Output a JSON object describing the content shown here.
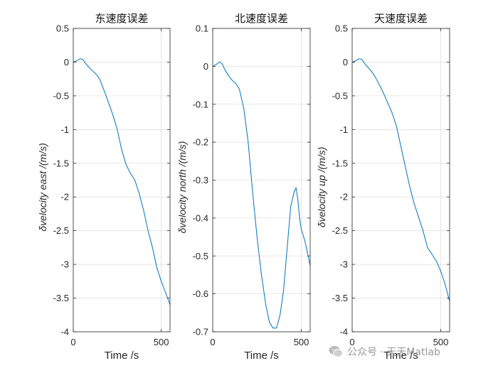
{
  "colors": {
    "line": "#0072BD",
    "axis": "#262626",
    "grid": "#dfdfdf"
  },
  "watermark": {
    "text": "公众号 · 天天Matlab",
    "icon": "wechat-icon"
  },
  "chart_data": [
    {
      "type": "line",
      "title": "东速度误差",
      "xlabel": "Time /s",
      "ylabel": "δvelocity east /(m/s)",
      "xlim": [
        0,
        550
      ],
      "ylim": [
        -4,
        0.5
      ],
      "xticks": [
        0,
        500
      ],
      "yticks": [
        0.5,
        0,
        -0.5,
        -1,
        -1.5,
        -2,
        -2.5,
        -3,
        -3.5,
        -4
      ],
      "ytick_labels": [
        "0.5",
        "0",
        "-0.5",
        "-1",
        "-1.5",
        "-2",
        "-2.5",
        "-3",
        "-3.5",
        "-4"
      ],
      "grid": true,
      "x": [
        0,
        20,
        40,
        55,
        70,
        90,
        110,
        130,
        150,
        175,
        200,
        225,
        250,
        275,
        300,
        325,
        350,
        375,
        400,
        425,
        450,
        475,
        500,
        525,
        550
      ],
      "y": [
        0.0,
        0.02,
        0.05,
        0.04,
        -0.02,
        -0.08,
        -0.13,
        -0.18,
        -0.25,
        -0.42,
        -0.6,
        -0.78,
        -1.0,
        -1.3,
        -1.52,
        -1.65,
        -1.75,
        -1.95,
        -2.2,
        -2.5,
        -2.75,
        -3.05,
        -3.25,
        -3.42,
        -3.6
      ]
    },
    {
      "type": "line",
      "title": "北速度误差",
      "xlabel": "Time /s",
      "ylabel": "δvelocity north /(m/s)",
      "xlim": [
        0,
        550
      ],
      "ylim": [
        -0.7,
        0.1
      ],
      "xticks": [
        0,
        500
      ],
      "yticks": [
        0.1,
        0,
        -0.1,
        -0.2,
        -0.3,
        -0.4,
        -0.5,
        -0.6,
        -0.7
      ],
      "ytick_labels": [
        "0.1",
        "0",
        "-0.1",
        "-0.2",
        "-0.3",
        "-0.4",
        "-0.5",
        "-0.6",
        "-0.7"
      ],
      "grid": true,
      "x": [
        0,
        20,
        40,
        55,
        70,
        90,
        110,
        130,
        150,
        175,
        200,
        225,
        250,
        275,
        300,
        320,
        340,
        360,
        380,
        400,
        420,
        440,
        460,
        470,
        480,
        490,
        500,
        520,
        550
      ],
      "y": [
        0.0,
        0.005,
        0.012,
        0.005,
        -0.01,
        -0.025,
        -0.037,
        -0.045,
        -0.06,
        -0.11,
        -0.2,
        -0.33,
        -0.45,
        -0.55,
        -0.63,
        -0.675,
        -0.69,
        -0.69,
        -0.655,
        -0.59,
        -0.48,
        -0.37,
        -0.33,
        -0.32,
        -0.35,
        -0.4,
        -0.43,
        -0.46,
        -0.525
      ]
    },
    {
      "type": "line",
      "title": "天速度误差",
      "xlabel": "Time /s",
      "ylabel": "δvelocity up /(m/s)",
      "xlim": [
        0,
        550
      ],
      "ylim": [
        -4,
        0.5
      ],
      "xticks": [
        0,
        500
      ],
      "yticks": [
        0.5,
        0,
        -0.5,
        -1,
        -1.5,
        -2,
        -2.5,
        -3,
        -3.5,
        -4
      ],
      "ytick_labels": [
        "0.5",
        "0",
        "-0.5",
        "-1",
        "-1.5",
        "-2",
        "-2.5",
        "-3",
        "-3.5",
        "-4"
      ],
      "grid": true,
      "x": [
        0,
        20,
        40,
        55,
        70,
        90,
        110,
        130,
        150,
        175,
        200,
        225,
        250,
        275,
        300,
        325,
        350,
        375,
        400,
        425,
        450,
        475,
        500,
        525,
        550
      ],
      "y": [
        0.0,
        0.02,
        0.05,
        0.04,
        -0.02,
        -0.08,
        -0.14,
        -0.22,
        -0.32,
        -0.45,
        -0.6,
        -0.75,
        -0.95,
        -1.25,
        -1.55,
        -1.85,
        -2.1,
        -2.3,
        -2.5,
        -2.75,
        -2.85,
        -2.95,
        -3.1,
        -3.3,
        -3.55
      ]
    }
  ]
}
